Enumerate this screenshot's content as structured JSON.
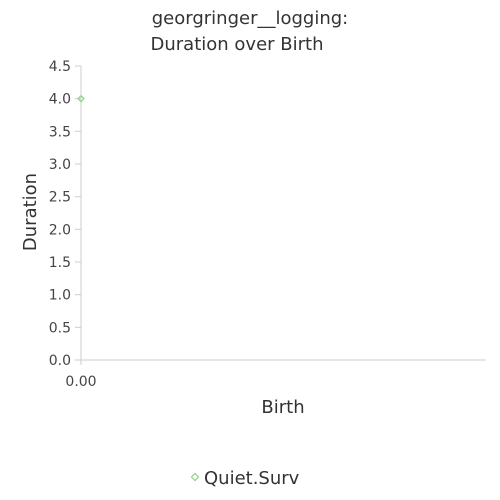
{
  "chart_data": {
    "type": "scatter",
    "title_lines": [
      "georgringer__logging:",
      "Duration over Birth"
    ],
    "xlabel": "Birth",
    "ylabel": "Duration",
    "xlim": [
      0,
      1
    ],
    "ylim": [
      0,
      4.5
    ],
    "x_ticks": [
      "0.00"
    ],
    "y_ticks": [
      "0.0",
      "0.5",
      "1.0",
      "1.5",
      "2.0",
      "2.5",
      "3.0",
      "3.5",
      "4.0",
      "4.5"
    ],
    "grid": false,
    "legend_position": "bottom",
    "series": [
      {
        "name": "Quiet.Surv",
        "color": "#90d08a",
        "marker": "diamond",
        "points": [
          {
            "x": 0.0,
            "y": 4.0
          }
        ]
      }
    ]
  }
}
